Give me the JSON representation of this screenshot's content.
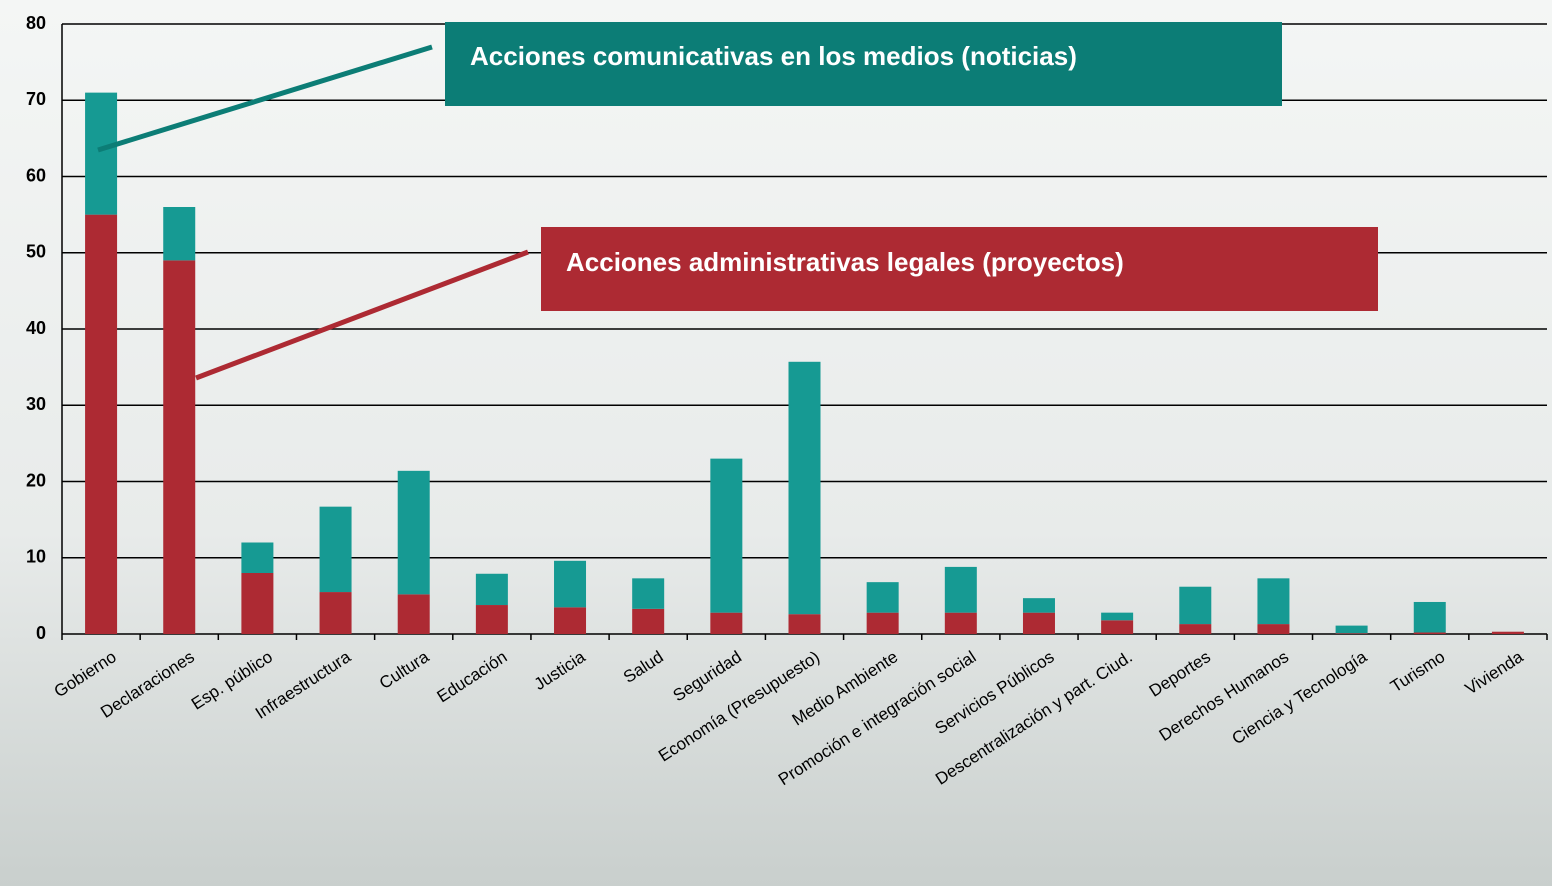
{
  "chart_data": {
    "type": "stacked_bar",
    "categories": [
      "Gobierno",
      "Declaraciones",
      "Esp. público",
      "Infraestructura",
      "Cultura",
      "Educación",
      "Justicia",
      "Salud",
      "Seguridad",
      "Economía (Presupuesto)",
      "Medio Ambiente",
      "Promoción e integración social",
      "Servicios Públicos",
      "Descentralización y part. Ciud.",
      "Deportes",
      "Derechos Humanos",
      "Ciencia y Tecnología",
      "Turismo",
      "Vivienda"
    ],
    "series": [
      {
        "name": "Acciones administrativas legales (proyectos)",
        "color": "#ad2a33",
        "values": [
          55,
          49,
          8,
          5.5,
          5.2,
          3.8,
          3.5,
          3.3,
          2.8,
          2.6,
          2.8,
          2.8,
          2.8,
          1.8,
          1.3,
          1.3,
          0.1,
          0.2,
          0.3
        ]
      },
      {
        "name": "Acciones comunicativas en los medios (noticias)",
        "color": "#169a93",
        "values": [
          16,
          7,
          4,
          11.2,
          16.2,
          4.1,
          6.1,
          4,
          20.2,
          33.1,
          4,
          6,
          1.9,
          1,
          4.9,
          6,
          1,
          4,
          0
        ]
      }
    ],
    "ylim": [
      0,
      80
    ],
    "yticks": [
      0,
      10,
      20,
      30,
      40,
      50,
      60,
      70,
      80
    ],
    "grid": true
  }
}
